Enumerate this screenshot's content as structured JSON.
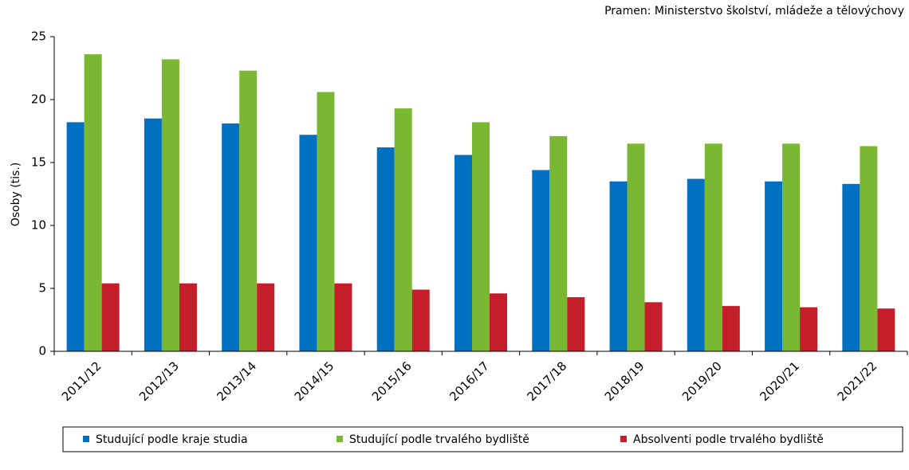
{
  "chart_data": {
    "type": "bar",
    "source": "Pramen: Ministerstvo školství, mládeže a tělovýchovy",
    "y_label": "Osoby (tis.)",
    "categories": [
      "2011/12",
      "2012/13",
      "2013/14",
      "2014/15",
      "2015/16",
      "2016/17",
      "2017/18",
      "2018/19",
      "2019/20",
      "2020/21",
      "2021/22"
    ],
    "series": [
      {
        "name": "Studující podle kraje studia",
        "color": "#0070c0",
        "values": [
          18.2,
          18.5,
          18.1,
          17.2,
          16.2,
          15.6,
          14.4,
          13.5,
          13.7,
          13.5,
          13.3
        ]
      },
      {
        "name": "Studující podle trvalého bydliště",
        "color": "#7ab833",
        "values": [
          23.6,
          23.2,
          22.3,
          20.6,
          19.3,
          18.2,
          17.1,
          16.5,
          16.5,
          16.5,
          16.3
        ]
      },
      {
        "name": "Absolventi podle trvalého bydliště",
        "color": "#c41e2a",
        "values": [
          5.4,
          5.4,
          5.4,
          5.4,
          4.9,
          4.6,
          4.3,
          3.9,
          3.6,
          3.5,
          3.4
        ]
      }
    ],
    "ylim": [
      0,
      25
    ],
    "yticks": [
      0,
      5,
      10,
      15,
      20,
      25
    ],
    "grid": false
  }
}
